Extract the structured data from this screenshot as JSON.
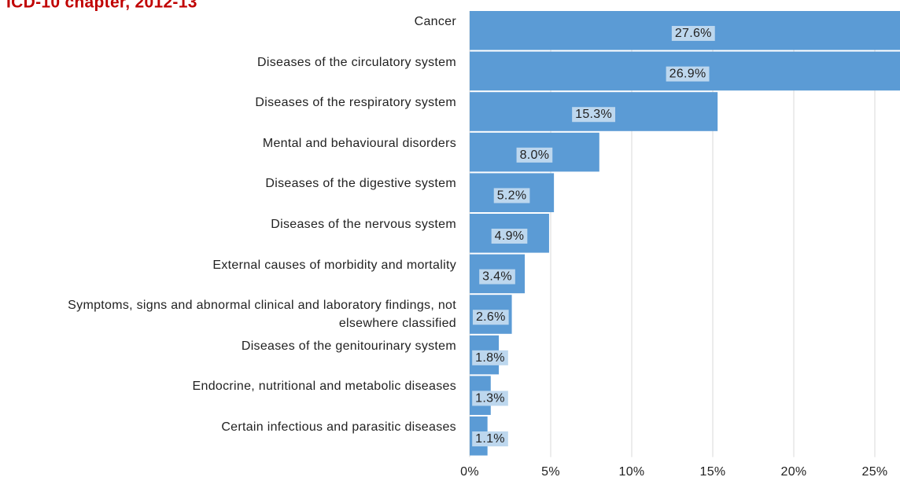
{
  "chart_data": {
    "type": "hbar",
    "title": "ICD-10 chapter, 2012-13",
    "categories": [
      "Cancer",
      "Diseases of the circulatory system",
      "Diseases of the respiratory system",
      "Mental and behavioural disorders",
      "Diseases of the digestive system",
      "Diseases of the nervous system",
      "External causes of morbidity and mortality",
      "Symptoms, signs and abnormal clinical and laboratory findings, not elsewhere classified",
      "Diseases of the genitourinary system",
      "Endocrine, nutritional and metabolic diseases",
      "Certain infectious and parasitic diseases"
    ],
    "values": [
      27.6,
      26.9,
      15.3,
      8.0,
      5.2,
      4.9,
      3.4,
      2.6,
      1.8,
      1.3,
      1.1
    ],
    "value_labels": [
      "27.6%",
      "26.9%",
      "15.3%",
      "8.0%",
      "5.2%",
      "4.9%",
      "3.4%",
      "2.6%",
      "1.8%",
      "1.3%",
      "1.1%"
    ],
    "color": "#5b9bd5",
    "xlim": [
      0,
      30
    ],
    "xticks": [
      {
        "value": 0,
        "label": "0%"
      },
      {
        "value": 5,
        "label": "5%"
      },
      {
        "value": 10,
        "label": "10%"
      },
      {
        "value": 15,
        "label": "15%"
      },
      {
        "value": 20,
        "label": "20%"
      },
      {
        "value": 25,
        "label": "25%"
      }
    ],
    "grid": true
  }
}
